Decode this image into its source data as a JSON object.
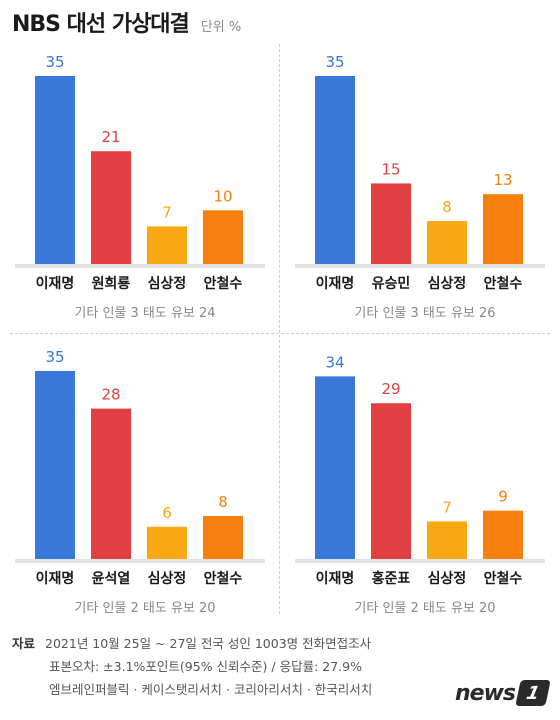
{
  "header": {
    "title": "NBS 대선 가상대결",
    "unit": "단위 %"
  },
  "colors": {
    "blue": "#3878d8",
    "red": "#e04040",
    "yellow": "#f9a814",
    "orange": "#f67f0e"
  },
  "chart_data": [
    {
      "type": "bar",
      "categories": [
        "이재명",
        "원희룡",
        "심상정",
        "안철수"
      ],
      "values": [
        35,
        21,
        7,
        10
      ],
      "colors": [
        "#3878d8",
        "#e04040",
        "#f9a814",
        "#f67f0e"
      ],
      "ylim": [
        0,
        35
      ],
      "note": "기타 인물 3 태도 유보 24"
    },
    {
      "type": "bar",
      "categories": [
        "이재명",
        "유승민",
        "심상정",
        "안철수"
      ],
      "values": [
        35,
        15,
        8,
        13
      ],
      "colors": [
        "#3878d8",
        "#e04040",
        "#f9a814",
        "#f67f0e"
      ],
      "ylim": [
        0,
        35
      ],
      "note": "기타 인물 3 태도 유보 26"
    },
    {
      "type": "bar",
      "categories": [
        "이재명",
        "윤석열",
        "심상정",
        "안철수"
      ],
      "values": [
        35,
        28,
        6,
        8
      ],
      "colors": [
        "#3878d8",
        "#e04040",
        "#f9a814",
        "#f67f0e"
      ],
      "ylim": [
        0,
        35
      ],
      "note": "기타 인물 2 태도 유보 20"
    },
    {
      "type": "bar",
      "categories": [
        "이재명",
        "홍준표",
        "심상정",
        "안철수"
      ],
      "values": [
        34,
        29,
        7,
        9
      ],
      "colors": [
        "#3878d8",
        "#e04040",
        "#f9a814",
        "#f67f0e"
      ],
      "ylim": [
        0,
        35
      ],
      "note": "기타 인물 2 태도 유보 20"
    }
  ],
  "footer": {
    "label": "자료",
    "line1": "2021년 10월 25일 ~ 27일 전국 성인 1003명 전화면접조사",
    "line2": "표본오차: ±3.1%포인트(95% 신뢰수준) / 응답률: 27.9%",
    "line3": "엠브레인퍼블릭 · 케이스탯리서치 · 코리아리서치 · 한국리서치"
  },
  "logo": {
    "text": "news",
    "badge": "1"
  }
}
